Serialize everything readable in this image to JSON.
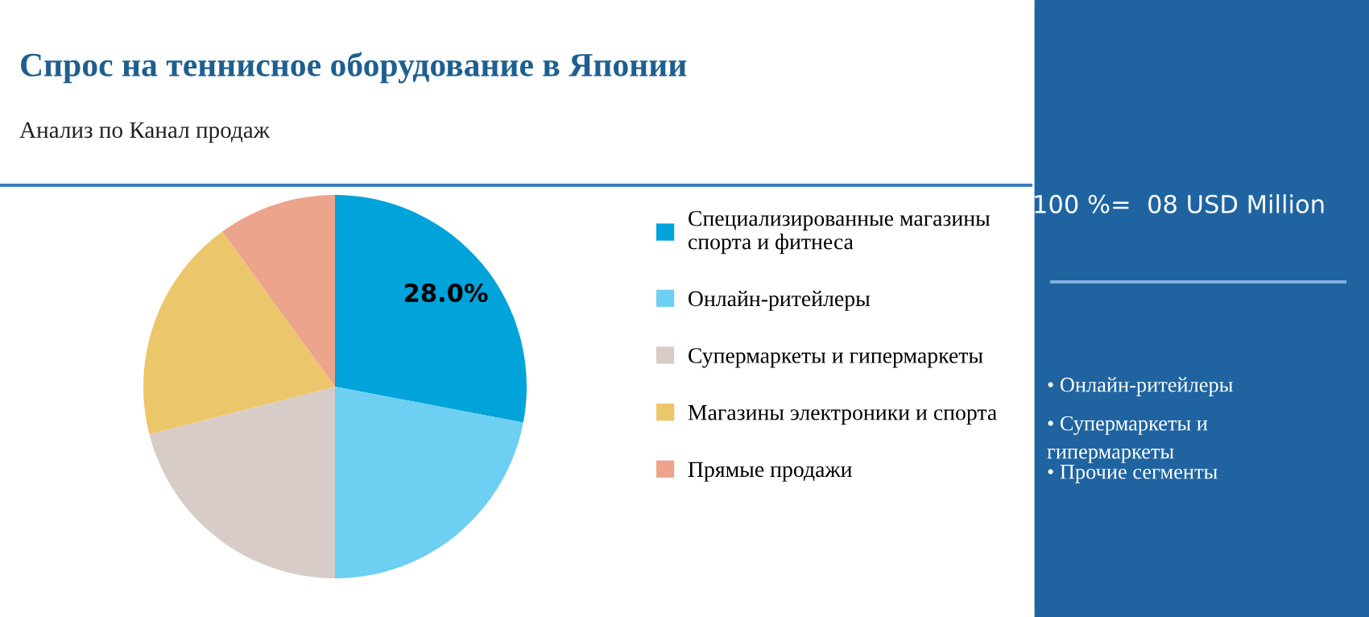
{
  "chart_data": {
    "type": "pie",
    "title": "Спрос на теннисное оборудование в Японии",
    "subtitle": "Анализ по Канал продаж",
    "categories": [
      "Специализированные магазины\nспорта и фитнеса",
      "Онлайн-ритейлеры",
      "Супермаркеты и гипермаркеты",
      "Магазины электроники и спорта",
      "Прямые продажи"
    ],
    "values": [
      28,
      22,
      21,
      19,
      10
    ],
    "colors": [
      "#00a3da",
      "#6dcff1",
      "#d8ccc8",
      "#ecc66b",
      "#eca48c"
    ],
    "value_labels": [
      "28.0%",
      null,
      null,
      null,
      null
    ],
    "legend": "right",
    "annotations": [
      "100 %=  08 USD Million",
      "• Онлайн-ритейлеры",
      "• Супермаркеты и\nгипермаркеты",
      "• Прочие сегменты"
    ]
  }
}
